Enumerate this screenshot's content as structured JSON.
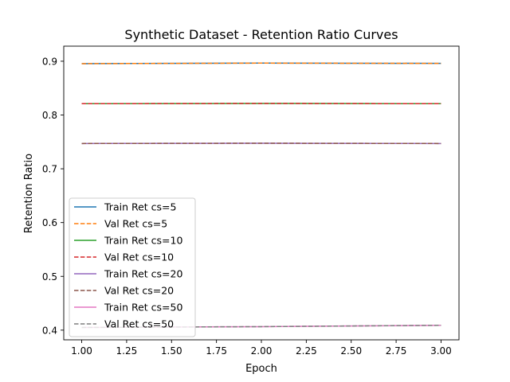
{
  "chart_data": {
    "type": "line",
    "title": "Synthetic Dataset - Retention Ratio Curves",
    "xlabel": "Epoch",
    "ylabel": "Retention Ratio",
    "xlim": [
      0.9,
      3.1
    ],
    "ylim": [
      0.382,
      0.928
    ],
    "xticks": [
      1.0,
      1.25,
      1.5,
      1.75,
      2.0,
      2.25,
      2.5,
      2.75,
      3.0
    ],
    "xtick_labels": [
      "1.00",
      "1.25",
      "1.50",
      "1.75",
      "2.00",
      "2.25",
      "2.50",
      "2.75",
      "3.00"
    ],
    "yticks": [
      0.4,
      0.5,
      0.6,
      0.7,
      0.8,
      0.9
    ],
    "ytick_labels": [
      "0.4",
      "0.5",
      "0.6",
      "0.7",
      "0.8",
      "0.9"
    ],
    "grid": false,
    "legend_position": "lower-left",
    "x": [
      1,
      2,
      3
    ],
    "series": [
      {
        "name": "Train Ret cs=5",
        "values": [
          0.8955,
          0.8965,
          0.896
        ],
        "color": "#1f77b4",
        "style": "solid"
      },
      {
        "name": "Val Ret cs=5",
        "values": [
          0.8955,
          0.8965,
          0.896
        ],
        "color": "#ff7f0e",
        "style": "dashed"
      },
      {
        "name": "Train Ret cs=10",
        "values": [
          0.821,
          0.8215,
          0.821
        ],
        "color": "#2ca02c",
        "style": "solid"
      },
      {
        "name": "Val Ret cs=10",
        "values": [
          0.821,
          0.8215,
          0.821
        ],
        "color": "#d62728",
        "style": "dashed"
      },
      {
        "name": "Train Ret cs=20",
        "values": [
          0.747,
          0.7475,
          0.747
        ],
        "color": "#9467bd",
        "style": "solid"
      },
      {
        "name": "Val Ret cs=20",
        "values": [
          0.747,
          0.7475,
          0.747
        ],
        "color": "#8c564b",
        "style": "dashed"
      },
      {
        "name": "Train Ret cs=50",
        "values": [
          0.405,
          0.4065,
          0.409
        ],
        "color": "#e377c2",
        "style": "solid"
      },
      {
        "name": "Val Ret cs=50",
        "values": [
          0.405,
          0.4065,
          0.409
        ],
        "color": "#7f7f7f",
        "style": "dashed"
      }
    ]
  }
}
